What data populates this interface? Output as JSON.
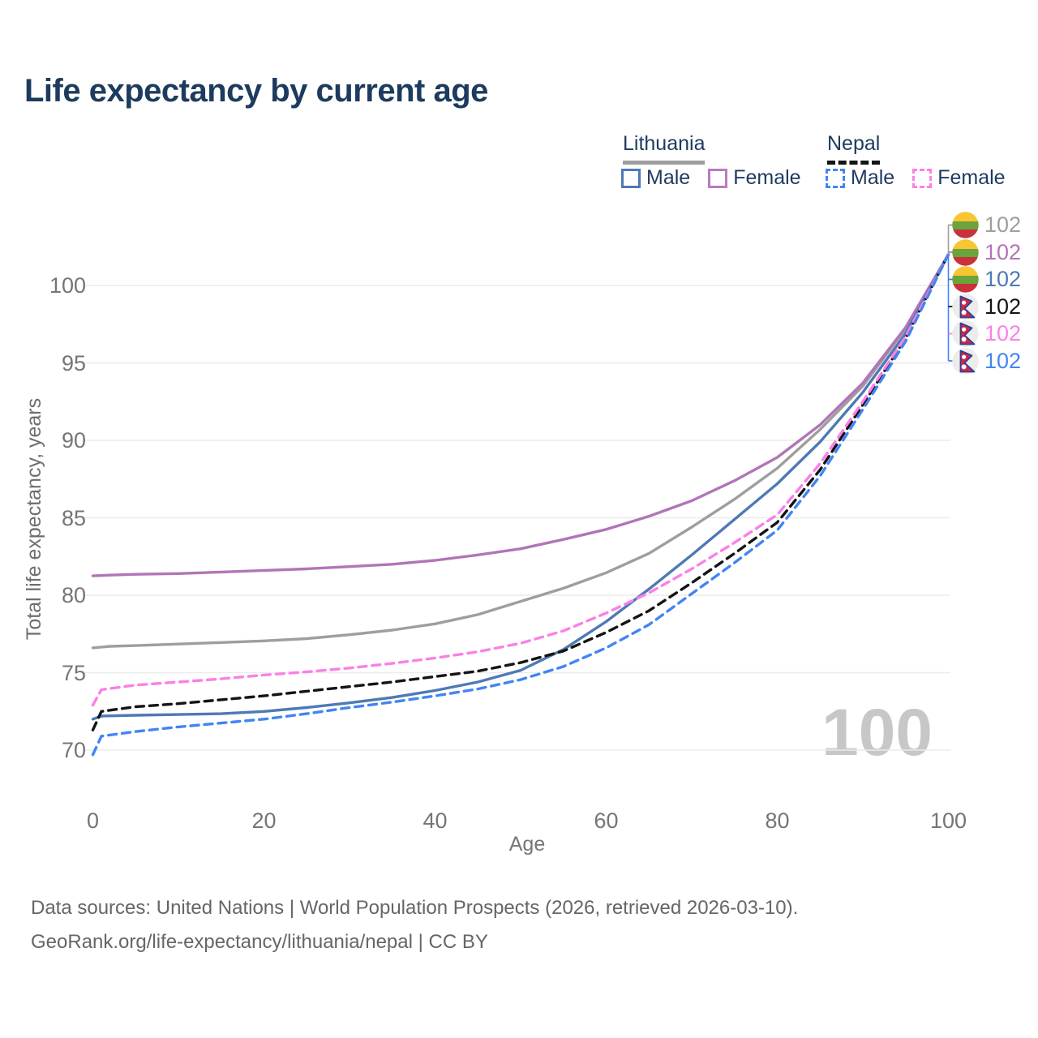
{
  "title": "Life expectancy by current age",
  "legend": {
    "lithuania": {
      "label": "Lithuania",
      "male_label": "Male",
      "female_label": "Female",
      "male_color": "#4e79b5",
      "female_color": "#b175b7",
      "line_style": "solid",
      "underline_color": "#9e9e9e"
    },
    "nepal": {
      "label": "Nepal",
      "male_label": "Male",
      "female_label": "Female",
      "male_color": "#4285f4",
      "female_color": "#fb80e5",
      "line_style": "dashed",
      "underline_color": "#141414"
    }
  },
  "watermark_age": "100",
  "footer": {
    "line1": "Data sources: United Nations | World Population Prospects (2026, retrieved 2026-03-10).",
    "line2": "GeoRank.org/life-expectancy/lithuania/nepal | CC BY"
  },
  "chart_data": {
    "type": "line",
    "title": "Life expectancy by current age",
    "xlabel": "Age",
    "ylabel": "Total life expectancy, years",
    "xlim": [
      0,
      100
    ],
    "ylim": [
      69,
      103
    ],
    "x_ticks": [
      "0",
      "20",
      "40",
      "60",
      "80",
      "100"
    ],
    "y_ticks": [
      "70",
      "75",
      "80",
      "85",
      "90",
      "95",
      "100"
    ],
    "grid": true,
    "legend_position": "top-right",
    "series": [
      {
        "name": "Lithuania — Total",
        "country": "Lithuania",
        "sex": "both",
        "color": "#9e9e9e",
        "dashed": false,
        "flag": "lithuania",
        "end_label": "102",
        "points": [
          [
            0,
            76.6
          ],
          [
            2,
            76.7
          ],
          [
            5,
            76.75
          ],
          [
            10,
            76.85
          ],
          [
            15,
            76.95
          ],
          [
            20,
            77.05
          ],
          [
            25,
            77.2
          ],
          [
            30,
            77.45
          ],
          [
            35,
            77.75
          ],
          [
            40,
            78.15
          ],
          [
            45,
            78.75
          ],
          [
            50,
            79.6
          ],
          [
            55,
            80.45
          ],
          [
            60,
            81.45
          ],
          [
            65,
            82.7
          ],
          [
            70,
            84.4
          ],
          [
            75,
            86.2
          ],
          [
            80,
            88.2
          ],
          [
            85,
            90.7
          ],
          [
            90,
            93.5
          ],
          [
            95,
            97.2
          ],
          [
            100,
            102
          ]
        ]
      },
      {
        "name": "Lithuania — Female",
        "country": "Lithuania",
        "sex": "female",
        "color": "#b175b7",
        "dashed": false,
        "flag": "lithuania",
        "end_label": "102",
        "points": [
          [
            0,
            81.25
          ],
          [
            2,
            81.3
          ],
          [
            5,
            81.35
          ],
          [
            10,
            81.4
          ],
          [
            15,
            81.5
          ],
          [
            20,
            81.6
          ],
          [
            25,
            81.7
          ],
          [
            30,
            81.85
          ],
          [
            35,
            82.0
          ],
          [
            40,
            82.25
          ],
          [
            45,
            82.6
          ],
          [
            50,
            83.0
          ],
          [
            55,
            83.6
          ],
          [
            60,
            84.25
          ],
          [
            65,
            85.1
          ],
          [
            70,
            86.1
          ],
          [
            75,
            87.4
          ],
          [
            80,
            88.9
          ],
          [
            85,
            91.0
          ],
          [
            90,
            93.7
          ],
          [
            95,
            97.3
          ],
          [
            100,
            102
          ]
        ]
      },
      {
        "name": "Lithuania — Male",
        "country": "Lithuania",
        "sex": "male",
        "color": "#4e79b5",
        "dashed": false,
        "flag": "lithuania",
        "end_label": "102",
        "points": [
          [
            0,
            72.0
          ],
          [
            1,
            72.2
          ],
          [
            5,
            72.25
          ],
          [
            10,
            72.3
          ],
          [
            15,
            72.35
          ],
          [
            20,
            72.5
          ],
          [
            25,
            72.75
          ],
          [
            30,
            73.05
          ],
          [
            35,
            73.4
          ],
          [
            40,
            73.85
          ],
          [
            45,
            74.4
          ],
          [
            50,
            75.15
          ],
          [
            55,
            76.5
          ],
          [
            60,
            78.3
          ],
          [
            65,
            80.4
          ],
          [
            70,
            82.6
          ],
          [
            75,
            84.9
          ],
          [
            80,
            87.2
          ],
          [
            85,
            89.9
          ],
          [
            90,
            93.1
          ],
          [
            95,
            96.9
          ],
          [
            100,
            102
          ]
        ]
      },
      {
        "name": "Nepal — Total",
        "country": "Nepal",
        "sex": "both",
        "color": "#141414",
        "dashed": true,
        "flag": "nepal",
        "end_label": "102",
        "points": [
          [
            0,
            71.3
          ],
          [
            1,
            72.5
          ],
          [
            5,
            72.8
          ],
          [
            10,
            73.0
          ],
          [
            15,
            73.25
          ],
          [
            20,
            73.5
          ],
          [
            25,
            73.8
          ],
          [
            30,
            74.1
          ],
          [
            35,
            74.4
          ],
          [
            40,
            74.75
          ],
          [
            45,
            75.1
          ],
          [
            50,
            75.65
          ],
          [
            55,
            76.4
          ],
          [
            60,
            77.6
          ],
          [
            65,
            79.0
          ],
          [
            70,
            80.8
          ],
          [
            75,
            82.7
          ],
          [
            80,
            84.7
          ],
          [
            85,
            88.1
          ],
          [
            90,
            92.3
          ],
          [
            95,
            96.6
          ],
          [
            100,
            102
          ]
        ]
      },
      {
        "name": "Nepal — Female",
        "country": "Nepal",
        "sex": "female",
        "color": "#fb80e5",
        "dashed": true,
        "flag": "nepal",
        "end_label": "102",
        "points": [
          [
            0,
            72.9
          ],
          [
            1,
            73.9
          ],
          [
            5,
            74.2
          ],
          [
            10,
            74.4
          ],
          [
            15,
            74.6
          ],
          [
            20,
            74.85
          ],
          [
            25,
            75.05
          ],
          [
            30,
            75.3
          ],
          [
            35,
            75.6
          ],
          [
            40,
            75.95
          ],
          [
            45,
            76.35
          ],
          [
            50,
            76.9
          ],
          [
            55,
            77.7
          ],
          [
            60,
            78.85
          ],
          [
            65,
            80.15
          ],
          [
            70,
            81.7
          ],
          [
            75,
            83.4
          ],
          [
            80,
            85.2
          ],
          [
            85,
            88.5
          ],
          [
            90,
            92.5
          ],
          [
            95,
            96.7
          ],
          [
            100,
            102
          ]
        ]
      },
      {
        "name": "Nepal — Male",
        "country": "Nepal",
        "sex": "male",
        "color": "#4285f4",
        "dashed": true,
        "flag": "nepal",
        "end_label": "102",
        "points": [
          [
            0,
            69.7
          ],
          [
            1,
            70.9
          ],
          [
            5,
            71.2
          ],
          [
            10,
            71.5
          ],
          [
            15,
            71.75
          ],
          [
            20,
            72.0
          ],
          [
            25,
            72.35
          ],
          [
            30,
            72.75
          ],
          [
            35,
            73.1
          ],
          [
            40,
            73.5
          ],
          [
            45,
            73.95
          ],
          [
            50,
            74.55
          ],
          [
            55,
            75.4
          ],
          [
            60,
            76.6
          ],
          [
            65,
            78.1
          ],
          [
            70,
            80.1
          ],
          [
            75,
            82.1
          ],
          [
            80,
            84.2
          ],
          [
            85,
            87.7
          ],
          [
            90,
            92.0
          ],
          [
            95,
            96.4
          ],
          [
            100,
            102
          ]
        ]
      }
    ]
  }
}
